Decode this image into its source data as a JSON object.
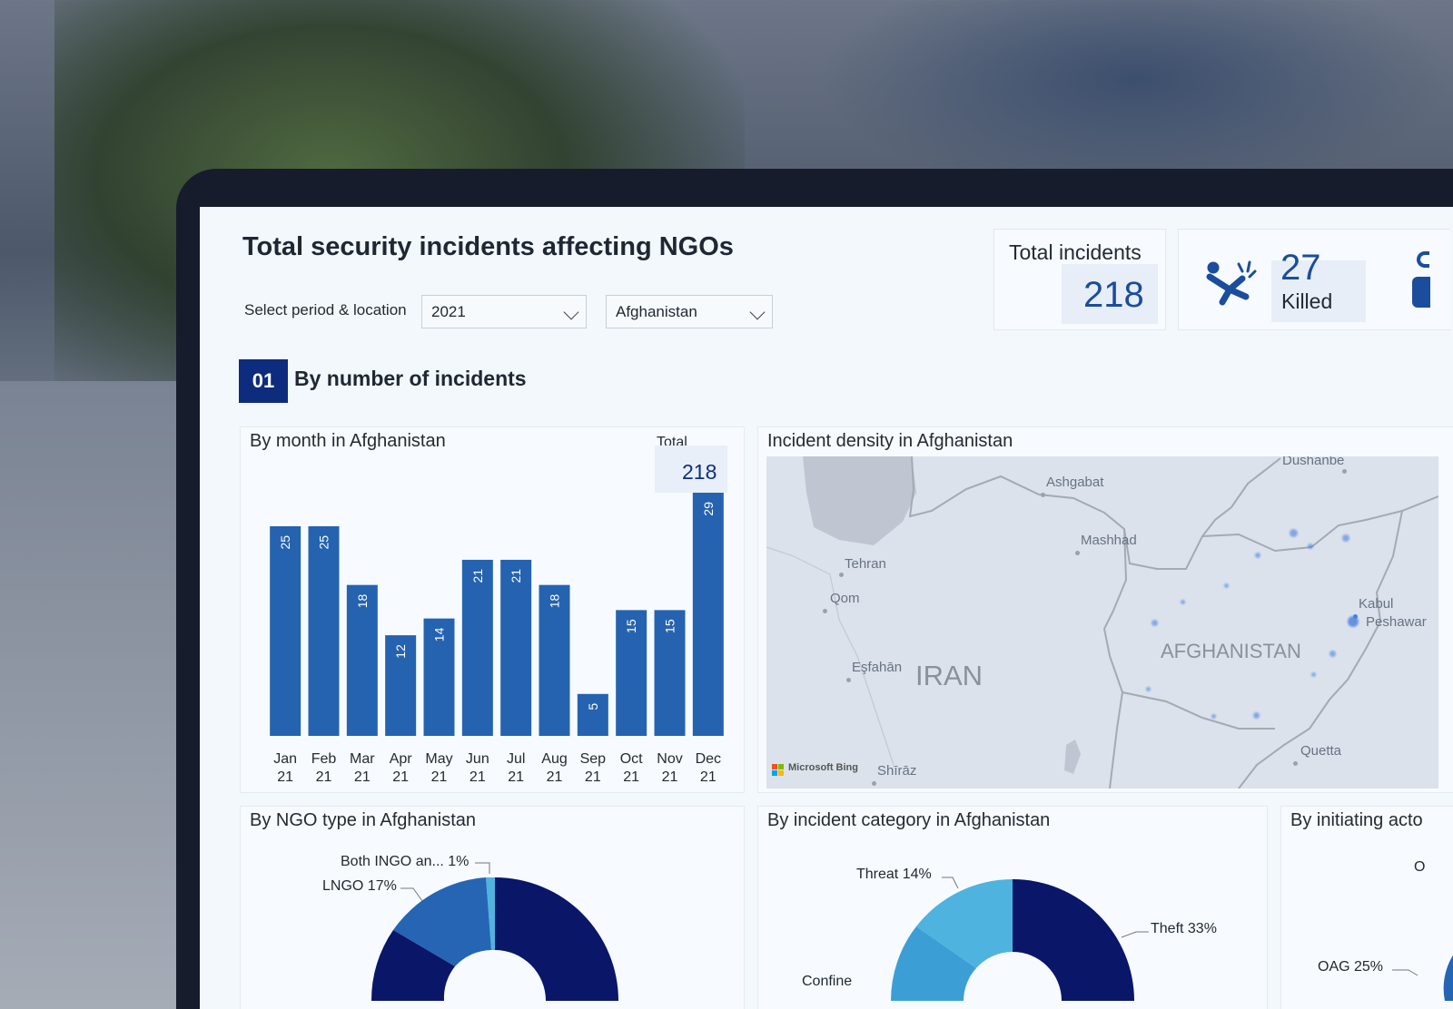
{
  "dashboard": {
    "title": "Total security incidents affecting NGOs",
    "filter_label": "Select period & location",
    "period_select": "2021",
    "location_select": "Afghanistan"
  },
  "kpis": {
    "total_label": "Total incidents",
    "total_value": "218",
    "killed_value": "27",
    "killed_label": "Killed"
  },
  "section": {
    "number": "01",
    "title": "By number of incidents"
  },
  "bar_panel": {
    "title": "By month in Afghanistan",
    "total_label": "Total",
    "total_value": "218"
  },
  "map_panel": {
    "title": "Incident density in Afghanistan",
    "attribution": "Microsoft Bing",
    "country_iran": "IRAN",
    "country_afg": "AFGHANISTAN",
    "cities": [
      "Dushanbe",
      "Ashgabat",
      "Mashhad",
      "Tehran",
      "Qom",
      "Kabul",
      "Peshawar",
      "Eşfahān",
      "Quetta",
      "Shīrāz"
    ]
  },
  "ngo_panel": {
    "title": "By NGO type in Afghanistan",
    "labels": [
      "Both INGO an... 1%",
      "LNGO 17%"
    ]
  },
  "category_panel": {
    "title": "By incident category in Afghanistan",
    "labels": [
      "Threat 14%",
      "Theft 33%",
      "Confine"
    ]
  },
  "actor_panel": {
    "title": "By initiating acto",
    "labels": [
      "O",
      "OAG 25%"
    ]
  },
  "colors": {
    "bar": "#2563b0",
    "navy": "#0a1668",
    "mid_blue": "#2565b3",
    "light_blue": "#4fb3df"
  },
  "chart_data": [
    {
      "type": "bar",
      "title": "By month in Afghanistan",
      "categories": [
        "Jan 21",
        "Feb 21",
        "Mar 21",
        "Apr 21",
        "May 21",
        "Jun 21",
        "Jul 21",
        "Aug 21",
        "Sep 21",
        "Oct 21",
        "Nov 21",
        "Dec 21"
      ],
      "values": [
        25,
        25,
        18,
        12,
        14,
        21,
        21,
        18,
        5,
        15,
        15,
        29
      ],
      "ylim": [
        0,
        29
      ],
      "grid": false,
      "data_labels": true
    }
  ]
}
